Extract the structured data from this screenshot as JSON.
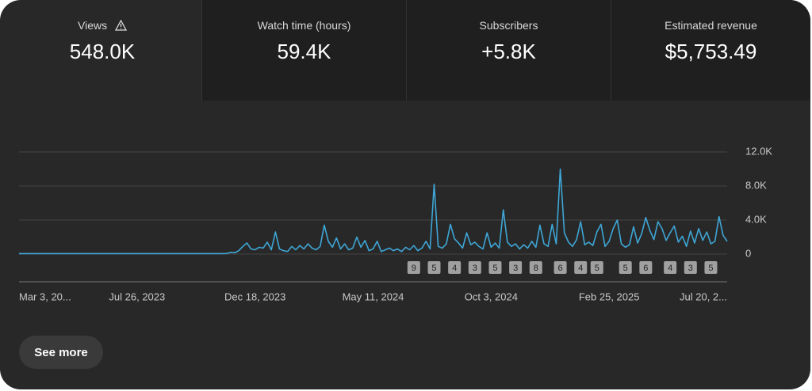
{
  "metrics": [
    {
      "label": "Views",
      "value": "548.0K"
    },
    {
      "label": "Watch time (hours)",
      "value": "59.4K"
    },
    {
      "label": "Subscribers",
      "value": "+5.8K"
    },
    {
      "label": "Estimated revenue",
      "value": "$5,753.49"
    }
  ],
  "button": "See more",
  "chart_data": {
    "type": "line",
    "color": "#3ea6d6",
    "grid": true,
    "ylim": [
      0,
      12000
    ],
    "yticks": [
      0,
      {
        "value": 4000,
        "label": "4.0K"
      },
      {
        "value": 8000,
        "label": "8.0K"
      },
      {
        "value": 12000,
        "label": "12.0K"
      }
    ],
    "categories": [
      "Mar 3, 20...",
      null,
      null,
      null,
      null,
      null,
      null,
      null,
      null,
      null,
      null,
      null,
      null,
      null,
      null,
      null,
      null,
      null,
      null,
      null,
      null,
      null,
      null,
      null,
      null,
      null,
      null,
      null,
      null,
      "Jul 26, 2023",
      null,
      null,
      null,
      null,
      null,
      null,
      null,
      null,
      null,
      null,
      null,
      null,
      null,
      null,
      null,
      null,
      null,
      null,
      null,
      null,
      null,
      null,
      null,
      null,
      null,
      null,
      null,
      null,
      "Dec 18, 2023",
      null,
      null,
      null,
      null,
      null,
      null,
      null,
      null,
      null,
      null,
      null,
      null,
      null,
      null,
      null,
      null,
      null,
      null,
      null,
      null,
      null,
      null,
      null,
      null,
      null,
      null,
      null,
      null,
      "May 11, 2024",
      null,
      null,
      null,
      null,
      null,
      null,
      null,
      null,
      null,
      null,
      null,
      null,
      null,
      null,
      null,
      null,
      null,
      null,
      null,
      null,
      null,
      null,
      null,
      null,
      null,
      null,
      null,
      null,
      "Oct 3, 2024",
      null,
      null,
      null,
      null,
      null,
      null,
      null,
      null,
      null,
      null,
      null,
      null,
      null,
      null,
      null,
      null,
      null,
      null,
      null,
      null,
      null,
      null,
      null,
      null,
      null,
      null,
      null,
      null,
      "Feb 25, 2025",
      null,
      null,
      null,
      null,
      null,
      null,
      null,
      null,
      null,
      null,
      null,
      null,
      null,
      null,
      null,
      null,
      null,
      null,
      null,
      null,
      null,
      null,
      null,
      null,
      null,
      null,
      null,
      null,
      "Jul 20, 2..."
    ],
    "values": [
      50,
      50,
      50,
      50,
      50,
      50,
      50,
      50,
      50,
      50,
      50,
      50,
      50,
      50,
      50,
      50,
      50,
      50,
      50,
      50,
      50,
      50,
      50,
      50,
      50,
      50,
      50,
      50,
      50,
      50,
      50,
      50,
      50,
      50,
      50,
      50,
      50,
      50,
      50,
      50,
      50,
      50,
      50,
      50,
      50,
      50,
      50,
      50,
      50,
      50,
      50,
      60,
      200,
      150,
      400,
      900,
      1300,
      600,
      500,
      800,
      700,
      1400,
      500,
      2600,
      600,
      400,
      300,
      900,
      500,
      1000,
      600,
      1200,
      700,
      500,
      900,
      3400,
      1500,
      800,
      1900,
      600,
      1200,
      500,
      700,
      2000,
      800,
      1600,
      400,
      600,
      1500,
      300,
      500,
      700,
      400,
      600,
      300,
      800,
      500,
      1000,
      400,
      700,
      1500,
      600,
      8200,
      900,
      700,
      1200,
      3500,
      1800,
      1300,
      700,
      2500,
      1100,
      1400,
      900,
      600,
      2500,
      800,
      1300,
      700,
      5200,
      1400,
      900,
      1200,
      600,
      1100,
      700,
      1500,
      800,
      3400,
      1200,
      900,
      3500,
      1200,
      10000,
      2500,
      1400,
      900,
      1700,
      3800,
      1100,
      1400,
      1000,
      2600,
      3500,
      900,
      1500,
      3000,
      4000,
      1200,
      800,
      1100,
      3200,
      1300,
      2400,
      4300,
      2800,
      1700,
      3800,
      3000,
      1600,
      2500,
      3300,
      1400,
      2100,
      900,
      2700,
      1300,
      3000,
      1600,
      2600,
      1200,
      1500,
      4400,
      2200,
      1500
    ],
    "markers": [
      null,
      null,
      null,
      null,
      null,
      null,
      null,
      null,
      null,
      null,
      null,
      null,
      null,
      null,
      null,
      null,
      null,
      null,
      null,
      null,
      null,
      null,
      null,
      null,
      null,
      null,
      null,
      null,
      null,
      null,
      null,
      null,
      null,
      null,
      null,
      null,
      null,
      null,
      null,
      null,
      null,
      null,
      null,
      null,
      null,
      null,
      null,
      null,
      null,
      null,
      null,
      null,
      null,
      null,
      null,
      null,
      null,
      null,
      null,
      null,
      null,
      null,
      null,
      null,
      null,
      null,
      null,
      null,
      null,
      null,
      null,
      null,
      null,
      null,
      null,
      null,
      null,
      null,
      null,
      null,
      null,
      null,
      null,
      null,
      null,
      null,
      null,
      null,
      null,
      null,
      null,
      null,
      null,
      null,
      null,
      null,
      null,
      9,
      null,
      null,
      null,
      null,
      5,
      null,
      null,
      null,
      null,
      4,
      null,
      null,
      null,
      null,
      3,
      null,
      null,
      null,
      null,
      5,
      null,
      null,
      null,
      null,
      3,
      null,
      null,
      null,
      null,
      8,
      null,
      null,
      null,
      null,
      null,
      6,
      null,
      null,
      null,
      null,
      4,
      null,
      null,
      null,
      5,
      null,
      null,
      null,
      null,
      null,
      null,
      5,
      null,
      null,
      null,
      null,
      6,
      null,
      null,
      null,
      null,
      null,
      4,
      null,
      null,
      null,
      null,
      3,
      null,
      null,
      null,
      null,
      5,
      null,
      null,
      null,
      null
    ]
  }
}
